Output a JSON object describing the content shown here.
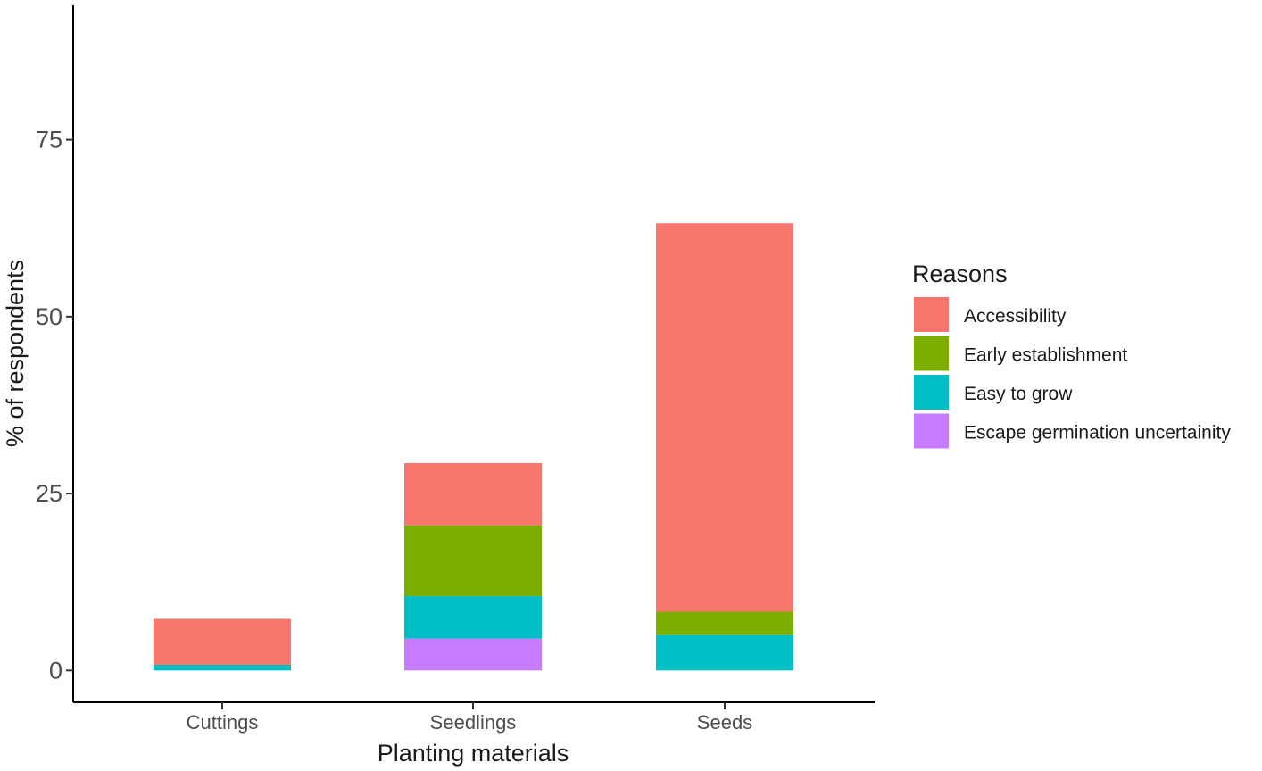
{
  "chart_data": {
    "type": "bar",
    "stacked": true,
    "categories": [
      "Cuttings",
      "Seedlings",
      "Seeds"
    ],
    "series": [
      {
        "name": "Escape germination uncertainity",
        "color": "#C77CFF",
        "values": [
          0,
          4.5,
          0
        ]
      },
      {
        "name": "Easy to grow",
        "color": "#00BFC4",
        "values": [
          0.8,
          6.0,
          5.0
        ]
      },
      {
        "name": "Early establishment",
        "color": "#7CAE00",
        "values": [
          0,
          10.0,
          3.3
        ]
      },
      {
        "name": "Accessibility",
        "color": "#F8766D",
        "values": [
          6.5,
          8.8,
          54.9
        ]
      }
    ],
    "legend_order": [
      "Accessibility",
      "Early establishment",
      "Easy to grow",
      "Escape germination uncertainity"
    ],
    "legend_title": "Reasons",
    "legend_position": "right",
    "xlabel": "Planting materials",
    "ylabel": "% of respondents",
    "yticks": [
      0,
      25,
      50,
      75
    ],
    "ylim": [
      -4.5,
      94
    ],
    "grid": false
  }
}
